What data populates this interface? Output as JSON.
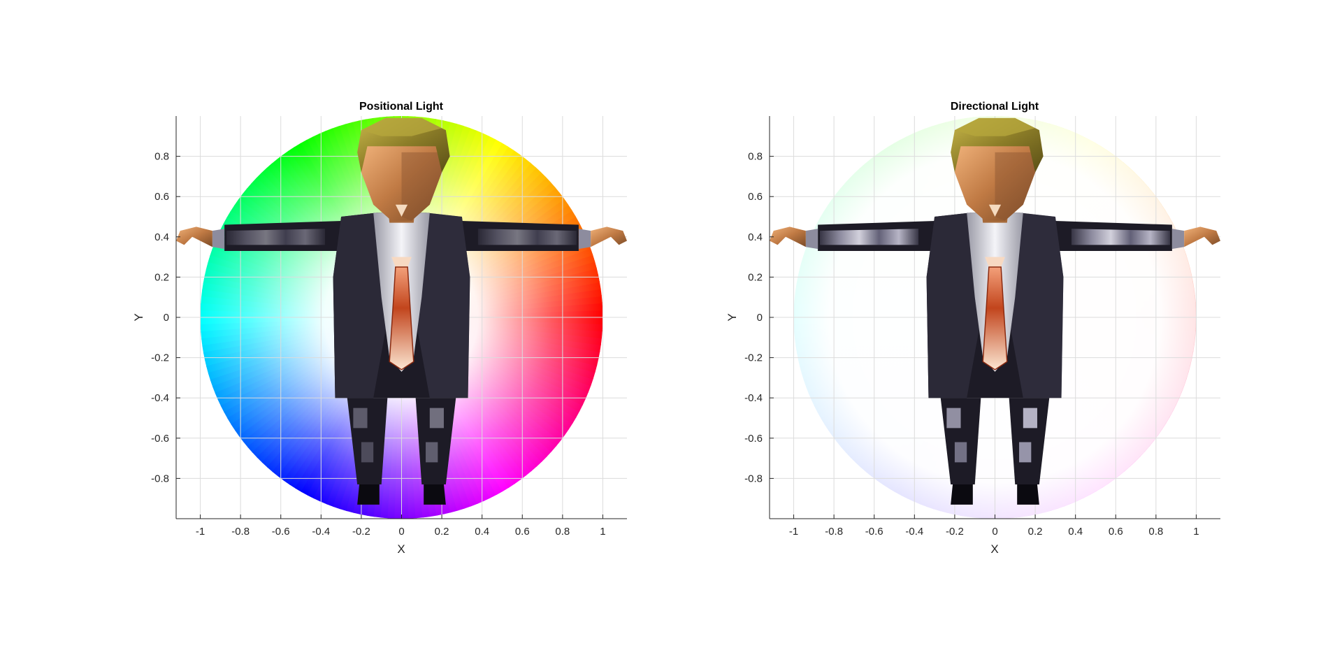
{
  "chart_data": [
    {
      "type": "scatter",
      "title": "Positional Light",
      "xlabel": "X",
      "ylabel": "Y",
      "xlim": [
        -1.12,
        1.12
      ],
      "ylim": [
        -1,
        1
      ],
      "xticks": [
        -1,
        -0.8,
        -0.6,
        -0.4,
        -0.2,
        0,
        0.2,
        0.4,
        0.6,
        0.8,
        1
      ],
      "yticks": [
        -0.8,
        -0.6,
        -0.4,
        -0.2,
        0,
        0.2,
        0.4,
        0.6,
        0.8
      ],
      "xtick_labels": [
        "-1",
        "-0.8",
        "-0.6",
        "-0.4",
        "-0.2",
        "0",
        "0.2",
        "0.4",
        "0.6",
        "0.8",
        "1"
      ],
      "ytick_labels": [
        "-0.8",
        "-0.6",
        "-0.4",
        "-0.2",
        "0",
        "0.2",
        "0.4",
        "0.6",
        "0.8"
      ],
      "grid": true,
      "background": "hue color wheel, radius 1, saturated at rim fading to white at centre",
      "wheel_radius": 1,
      "wheel_saturation": 1.0,
      "subject": "low-poly 3D figure in dark suit, T-pose"
    },
    {
      "type": "scatter",
      "title": "Directional Light",
      "xlabel": "X",
      "ylabel": "Y",
      "xlim": [
        -1.12,
        1.12
      ],
      "ylim": [
        -1,
        1
      ],
      "xticks": [
        -1,
        -0.8,
        -0.6,
        -0.4,
        -0.2,
        0,
        0.2,
        0.4,
        0.6,
        0.8,
        1
      ],
      "yticks": [
        -0.8,
        -0.6,
        -0.4,
        -0.2,
        0,
        0.2,
        0.4,
        0.6,
        0.8
      ],
      "xtick_labels": [
        "-1",
        "-0.8",
        "-0.6",
        "-0.4",
        "-0.2",
        "0",
        "0.2",
        "0.4",
        "0.6",
        "0.8",
        "1"
      ],
      "ytick_labels": [
        "-0.8",
        "-0.6",
        "-0.4",
        "-0.2",
        "0",
        "0.2",
        "0.4",
        "0.6",
        "0.8"
      ],
      "grid": true,
      "background": "hue color wheel, radius 1, very pale pastel",
      "wheel_radius": 1,
      "wheel_saturation": 0.18,
      "subject": "low-poly 3D figure in dark suit, T-pose"
    }
  ]
}
